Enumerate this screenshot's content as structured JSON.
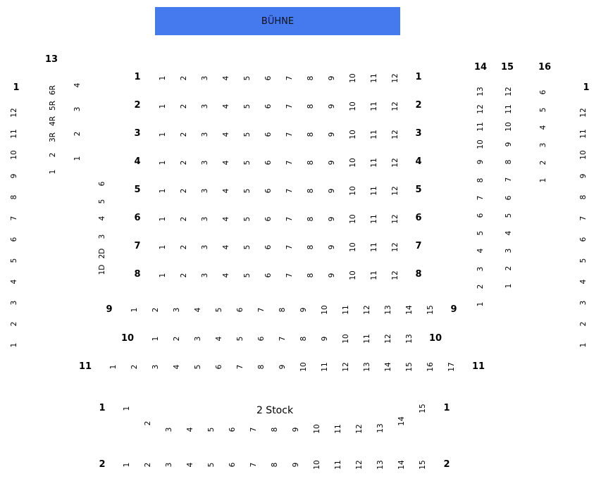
{
  "stage": {
    "label": "BÜHNE",
    "color": "#4579ee"
  },
  "floor2": {
    "caption": "2 Stock"
  },
  "blocks": [
    {
      "id": "r1",
      "label": "1",
      "seats": [
        "1",
        "2",
        "3",
        "4",
        "5",
        "6",
        "7",
        "8",
        "9",
        "10",
        "11",
        "12"
      ]
    },
    {
      "id": "r2",
      "label": "2",
      "seats": [
        "1",
        "2",
        "3",
        "4",
        "5",
        "6",
        "7",
        "8",
        "9",
        "10",
        "11",
        "12"
      ]
    },
    {
      "id": "r3",
      "label": "3",
      "seats": [
        "1",
        "2",
        "3",
        "4",
        "5",
        "6",
        "7",
        "8",
        "9",
        "10",
        "11",
        "12"
      ]
    },
    {
      "id": "r4",
      "label": "4",
      "seats": [
        "1",
        "2",
        "3",
        "4",
        "5",
        "6",
        "7",
        "8",
        "9",
        "10",
        "11",
        "12"
      ]
    },
    {
      "id": "r5",
      "label": "5",
      "seats": [
        "1",
        "2",
        "3",
        "4",
        "5",
        "6",
        "7",
        "8",
        "9",
        "10",
        "11",
        "12"
      ]
    },
    {
      "id": "r6",
      "label": "6",
      "seats": [
        "1",
        "2",
        "3",
        "4",
        "5",
        "6",
        "7",
        "8",
        "9",
        "10",
        "11",
        "12"
      ]
    },
    {
      "id": "r7",
      "label": "7",
      "seats": [
        "1",
        "2",
        "3",
        "4",
        "5",
        "6",
        "7",
        "8",
        "9",
        "10",
        "11",
        "12"
      ]
    },
    {
      "id": "r8",
      "label": "8",
      "seats": [
        "1",
        "2",
        "3",
        "4",
        "5",
        "6",
        "7",
        "8",
        "9",
        "10",
        "11",
        "12"
      ]
    },
    {
      "id": "r9",
      "label": "9",
      "seats": [
        "1",
        "2",
        "3",
        "4",
        "5",
        "6",
        "7",
        "8",
        "9",
        "10",
        "11",
        "12",
        "13",
        "14",
        "15"
      ]
    },
    {
      "id": "r10",
      "label": "10",
      "seats": [
        "1",
        "2",
        "3",
        "4",
        "5",
        "6",
        "7",
        "8",
        "9",
        "10",
        "11",
        "12",
        "13"
      ]
    },
    {
      "id": "r11",
      "label": "11",
      "seats": [
        "1",
        "2",
        "3",
        "4",
        "5",
        "6",
        "7",
        "8",
        "9",
        "10",
        "11",
        "12",
        "13",
        "14",
        "15",
        "16",
        "17"
      ]
    },
    {
      "id": "leftcol1",
      "label": "1",
      "seats": [
        "1",
        "2",
        "3",
        "4",
        "5",
        "6",
        "7",
        "8",
        "9",
        "10",
        "11",
        "12"
      ]
    },
    {
      "id": "rightcol1",
      "label": "1",
      "seats": [
        "1",
        "2",
        "3",
        "4",
        "5",
        "6",
        "7",
        "8",
        "9",
        "10",
        "11",
        "12"
      ]
    },
    {
      "id": "col13a",
      "label": "13",
      "seats": [
        "1",
        "2",
        "3R",
        "4R",
        "5R",
        "6R"
      ]
    },
    {
      "id": "col13b",
      "label": "",
      "seats": [
        "1",
        "2",
        "3",
        "4"
      ]
    },
    {
      "id": "col13c",
      "label": "",
      "seats": [
        "1D",
        "2D",
        "3",
        "4",
        "5",
        "6"
      ]
    },
    {
      "id": "col14",
      "label": "14",
      "seats": [
        "1",
        "2",
        "3",
        "4",
        "5",
        "6",
        "7",
        "8",
        "9",
        "10",
        "11",
        "12",
        "13"
      ]
    },
    {
      "id": "col15",
      "label": "15",
      "seats": [
        "1",
        "2",
        "3",
        "4",
        "5",
        "6",
        "7",
        "8",
        "9",
        "10",
        "11",
        "12"
      ]
    },
    {
      "id": "col16",
      "label": "16",
      "seats": [
        "1",
        "2",
        "3",
        "4",
        "5",
        "6"
      ]
    },
    {
      "id": "s2r1",
      "label": "1",
      "seats": [
        "1",
        "2",
        "3",
        "4",
        "5",
        "6",
        "7",
        "8",
        "9",
        "10",
        "11",
        "12",
        "13",
        "14",
        "15"
      ]
    },
    {
      "id": "s2r2",
      "label": "2",
      "seats": [
        "1",
        "2",
        "3",
        "4",
        "5",
        "6",
        "7",
        "8",
        "9",
        "10",
        "11",
        "12",
        "13",
        "14",
        "15"
      ]
    }
  ]
}
